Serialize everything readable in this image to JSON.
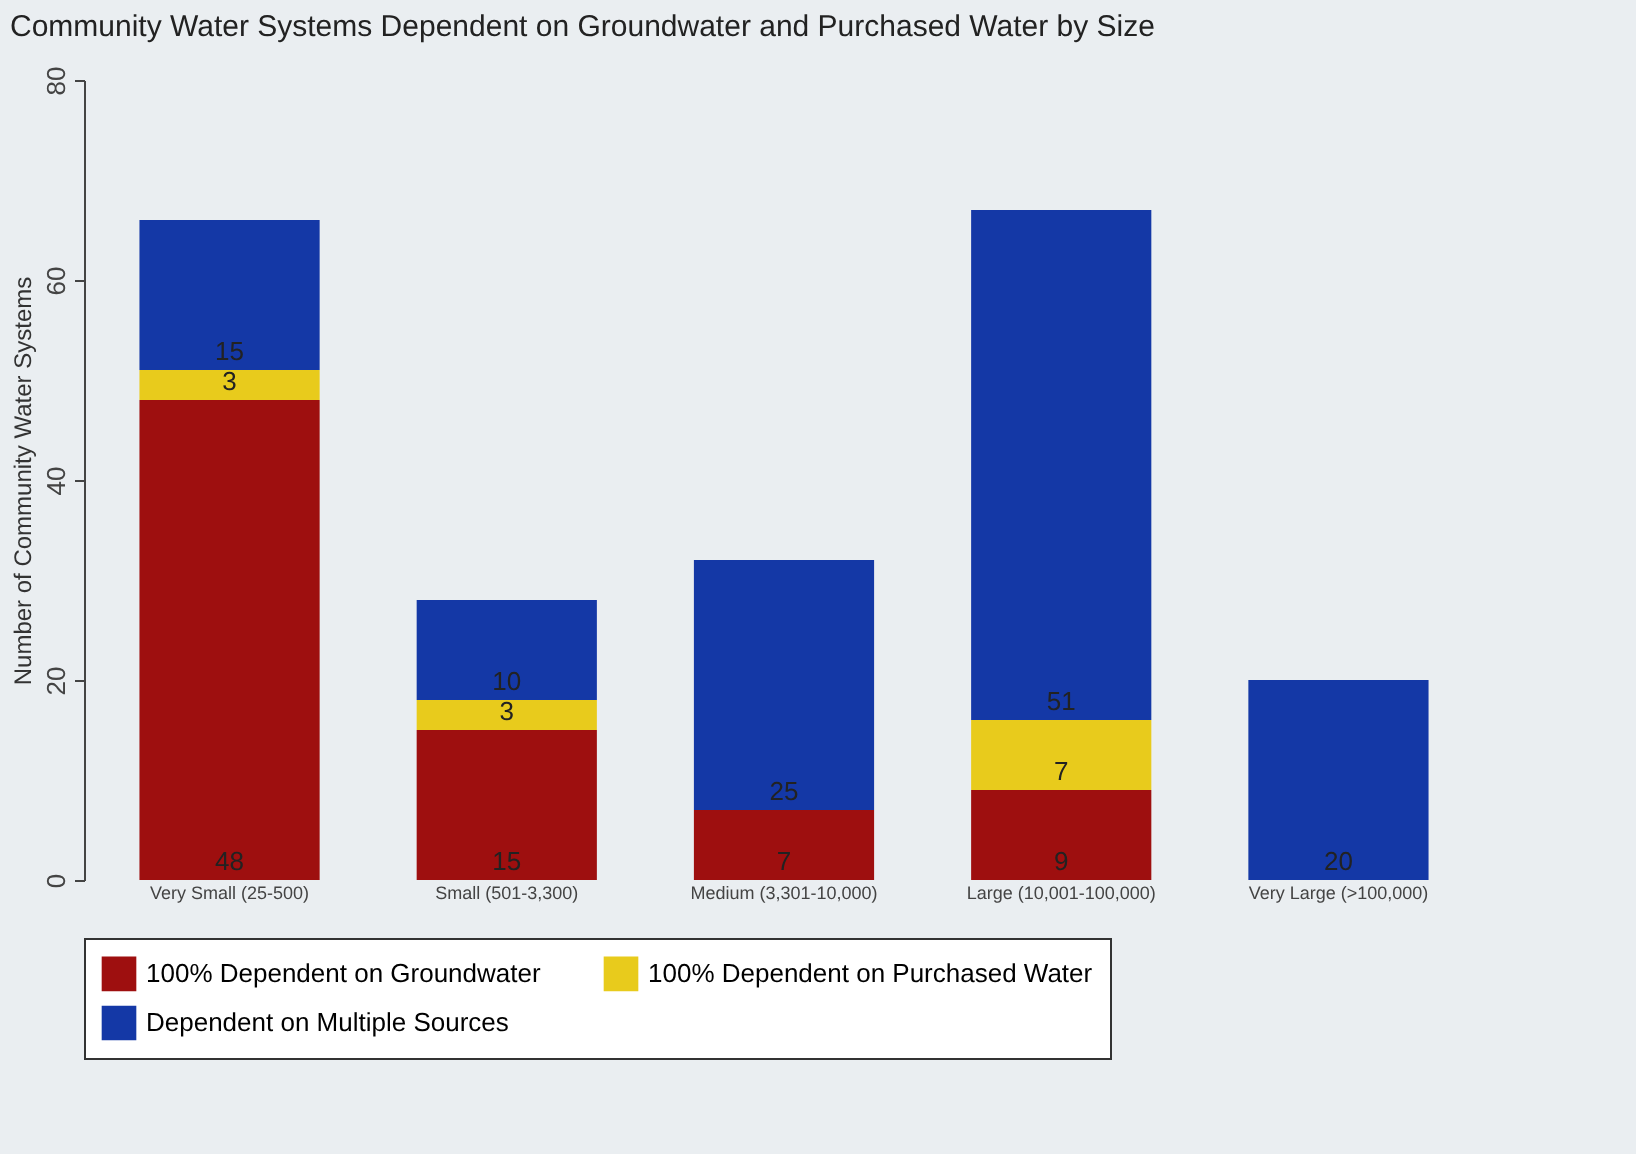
{
  "chart_data": {
    "type": "bar",
    "stacked": true,
    "title": "Community Water Systems Dependent on Groundwater and Purchased Water by Size",
    "ylabel": "Number of Community Water Systems",
    "categories": [
      "Very Small (25-500)",
      "Small (501-3,300)",
      "Medium (3,301-10,000)",
      "Large (10,001-100,000)",
      "Very Large (>100,000)"
    ],
    "series": [
      {
        "name": "100% Dependent on Groundwater",
        "color": "#9e0f0f",
        "values": [
          48,
          15,
          7,
          9,
          0
        ],
        "value_labels": [
          "48",
          "15",
          "7",
          "9",
          null
        ]
      },
      {
        "name": "100% Dependent on Purchased Water",
        "color": "#e8cb1c",
        "values": [
          3,
          3,
          0,
          7,
          0
        ],
        "value_labels": [
          "3",
          "3",
          null,
          "7",
          null
        ]
      },
      {
        "name": "Dependent on Multiple Sources",
        "color": "#1438a6",
        "values": [
          15,
          10,
          25,
          51,
          20
        ],
        "value_labels": [
          "15",
          "10",
          "25",
          "51",
          "20"
        ]
      }
    ],
    "ylim": [
      0,
      80
    ],
    "yticks": [
      0,
      20,
      40,
      60,
      80
    ],
    "grid": false,
    "legend": "bottom"
  }
}
